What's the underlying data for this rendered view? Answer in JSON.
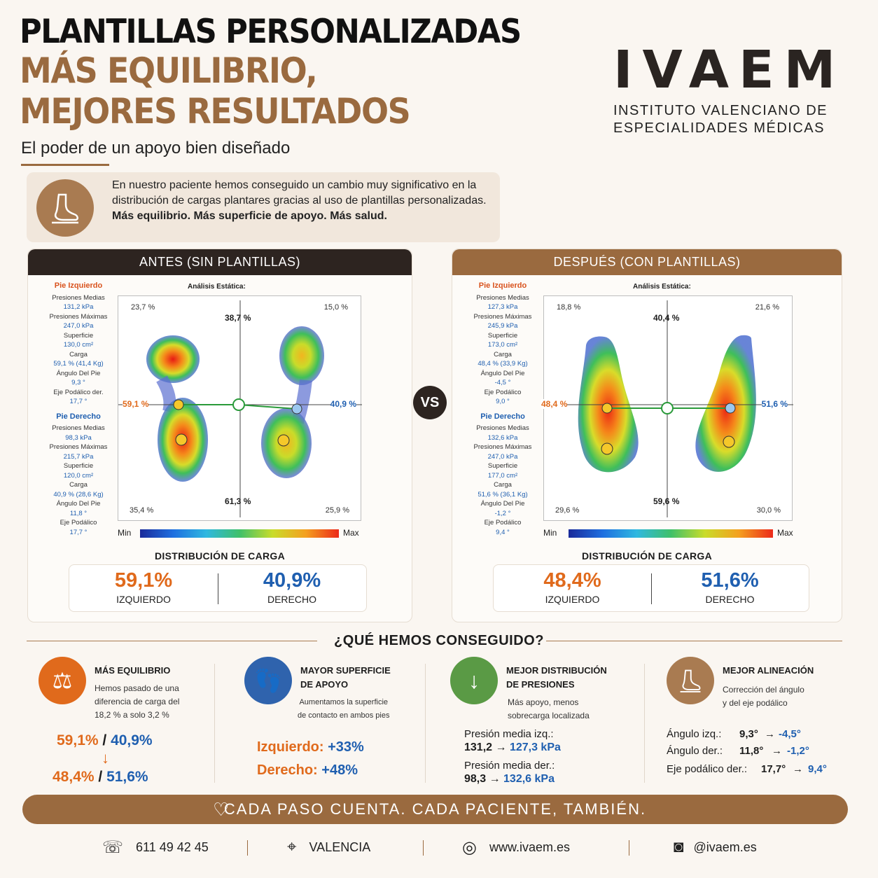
{
  "header": {
    "title": "PLANTILLAS PERSONALIZADAS",
    "headline_1": "MÁS EQUILIBRIO,",
    "headline_2": "MEJORES RESULTADOS",
    "subtitle": "El poder de un apoyo bien diseñado"
  },
  "logo": {
    "word": "IVAEM",
    "line_1": "INSTITUTO VALENCIANO DE",
    "line_2": "ESPECIALIDADES MÉDICAS"
  },
  "intro": {
    "icon": "foot-insole-icon",
    "text": "En nuestro paciente hemos conseguido un cambio muy significativo en la distribución de cargas plantares gracias al uso de plantillas personalizadas.",
    "bold": "Más equilibrio. Más superficie de apoyo. Más salud."
  },
  "before": {
    "header": "ANTES (SIN PLANTILLAS)",
    "analysis_title": "Análisis Estática:",
    "left_foot": {
      "label": "Pie Izquierdo",
      "mean_label": "Presiones Medias",
      "mean": "131,2 kPa",
      "max_label": "Presiones Máximas",
      "max": "247,0 kPa",
      "surface_label": "Superficie",
      "surface": "130,0 cm²",
      "load_label": "Carga",
      "load": "59,1 % (41,4 Kg)",
      "angle_label": "Ángulo Del Pie",
      "angle": "9,3 °",
      "axis_label": "Eje Podálico der.",
      "axis": "17,7 °"
    },
    "right_foot": {
      "label": "Pie Derecho",
      "mean_label": "Presiones Medias",
      "mean": "98,3 kPa",
      "max_label": "Presiones Máximas",
      "max": "215,7 kPa",
      "surface_label": "Superficie",
      "surface": "120,0 cm²",
      "load_label": "Carga",
      "load": "40,9 % (28,6 Kg)",
      "angle_label": "Ángulo Del Pie",
      "angle": "11,8 °",
      "axis_label": "Eje Podálico",
      "axis": "17,7 °"
    },
    "quadrants": {
      "tl": "23,7 %",
      "tr": "15,0 %",
      "bl": "35,4 %",
      "br": "25,9 %"
    },
    "top_pct": "38,7 %",
    "bottom_pct": "61,3 %",
    "left_pct": "59,1 %",
    "right_pct": "40,9 %",
    "scale_min": "Min",
    "scale_max": "Max",
    "dist_title": "DISTRIBUCIÓN DE CARGA",
    "left_value": "59,1%",
    "left_label": "IZQUIERDO",
    "right_value": "40,9%",
    "right_label": "DERECHO"
  },
  "vs": "VS",
  "after": {
    "header": "DESPUÉS (CON PLANTILLAS)",
    "analysis_title": "Análisis Estática:",
    "left_foot": {
      "label": "Pie Izquierdo",
      "mean_label": "Presiones Medias",
      "mean": "127,3 kPa",
      "max_label": "Presiones Máximas",
      "max": "245,9 kPa",
      "surface_label": "Superficie",
      "surface": "173,0 cm²",
      "load_label": "Carga",
      "load": "48,4 % (33,9 Kg)",
      "angle_label": "Ángulo Del Pie",
      "angle": "-4,5 °",
      "axis_label": "Eje Podálico",
      "axis": "9,0 °"
    },
    "right_foot": {
      "label": "Pie Derecho",
      "mean_label": "Presiones Medias",
      "mean": "132,6 kPa",
      "max_label": "Presiones Máximas",
      "max": "247,0 kPa",
      "surface_label": "Superficie",
      "surface": "177,0 cm²",
      "load_label": "Carga",
      "load": "51,6 % (36,1 Kg)",
      "angle_label": "Ángulo Del Pie",
      "angle": "-1,2 °",
      "axis_label": "Eje Podálico",
      "axis": "9,4 °"
    },
    "quadrants": {
      "tl": "18,8 %",
      "tr": "21,6 %",
      "bl": "29,6 %",
      "br": "30,0 %"
    },
    "top_pct": "40,4 %",
    "bottom_pct": "59,6 %",
    "left_pct": "48,4 %",
    "right_pct": "51,6 %",
    "scale_min": "Min",
    "scale_max": "Max",
    "dist_title": "DISTRIBUCIÓN DE CARGA",
    "left_value": "48,4%",
    "left_label": "IZQUIERDO",
    "right_value": "51,6%",
    "right_label": "DERECHO"
  },
  "achievements": {
    "title": "¿QUÉ HEMOS CONSEGUIDO?",
    "balance": {
      "icon": "scale-icon",
      "title": "MÁS EQUILIBRIO",
      "desc_1": "Hemos pasado de una",
      "desc_2": "diferencia de carga del",
      "desc_3": "18,2 % a solo 3,2 %",
      "before_left": "59,1%",
      "before_right": "40,9%",
      "after_left": "48,4%",
      "after_right": "51,6%"
    },
    "surface": {
      "icon": "footprint-icon",
      "title_1": "MAYOR SUPERFICIE",
      "title_2": "DE APOYO",
      "desc_1": "Aumentamos la superficie",
      "desc_2": "de contacto en ambos pies",
      "left_label": "Izquierdo:",
      "left_value": "+33%",
      "right_label": "Derecho:",
      "right_value": "+48%"
    },
    "pressure": {
      "icon": "arrow-down-icon",
      "title_1": "MEJOR DISTRIBUCIÓN",
      "title_2": "DE PRESIONES",
      "desc_1": "Más apoyo, menos",
      "desc_2": "sobrecarga localizada",
      "left_label": "Presión media izq.:",
      "left_from": "131,2",
      "left_to": "127,3 kPa",
      "right_label": "Presión media der.:",
      "right_from": "98,3",
      "right_to": "132,6 kPa"
    },
    "alignment": {
      "icon": "foot-insole-icon",
      "title": "MEJOR ALINEACIÓN",
      "desc_1": "Corrección del ángulo",
      "desc_2": "y del eje podálico",
      "r1_label": "Ángulo izq.:",
      "r1_from": "9,3°",
      "r1_to": "-4,5°",
      "r2_label": "Ángulo der.:",
      "r2_from": "11,8°",
      "r2_to": "-1,2°",
      "r3_label": "Eje podálico der.:",
      "r3_from": "17,7°",
      "r3_to": "9,4°"
    }
  },
  "banner": "CADA PASO CUENTA. CADA PACIENTE, TAMBIÉN.",
  "contact": {
    "phone": "611 49 42 45",
    "city": "VALENCIA",
    "web": "www.ivaem.es",
    "instagram": "@ivaem.es"
  },
  "colors": {
    "brand": "#9a6a3f",
    "dark": "#2d2420",
    "left": "#e06a1c",
    "right": "#1f5fb0"
  }
}
